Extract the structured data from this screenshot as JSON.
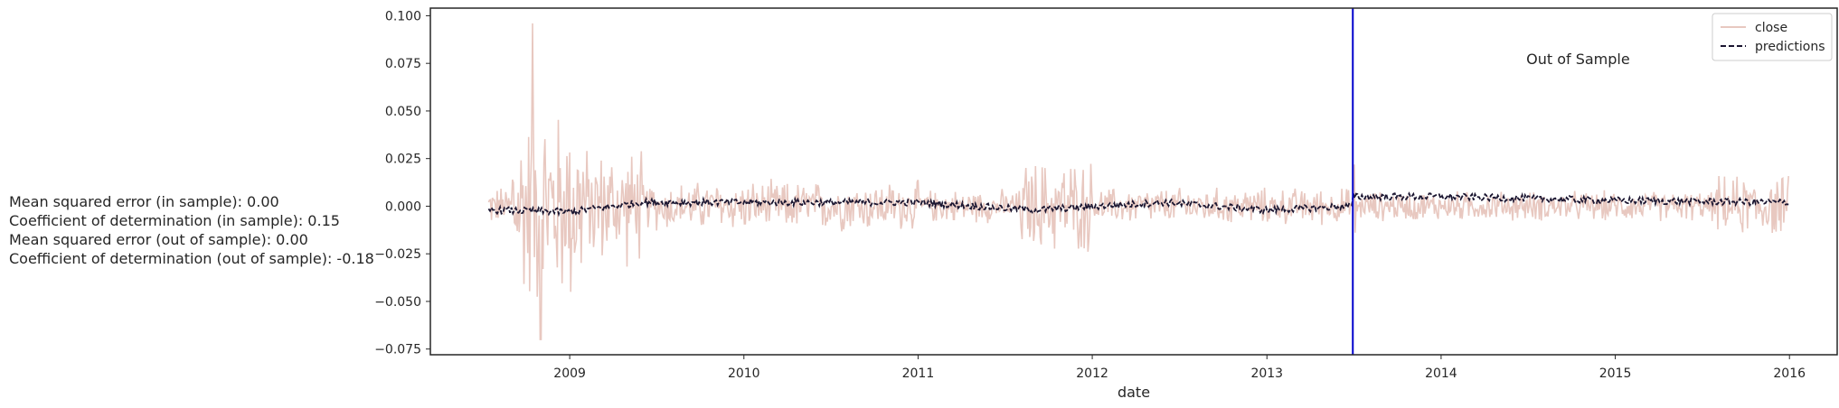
{
  "stats": [
    "Mean squared error (in sample): 0.00",
    "Coefficient of determination (in sample): 0.15",
    "Mean squared error (out of sample): 0.00",
    "Coefficient of determination (out of sample): -0.18"
  ],
  "chart_data": {
    "type": "line",
    "title": "",
    "xlabel": "date",
    "ylabel": "",
    "xlim": [
      "2008-03-15",
      "2016-04-10"
    ],
    "ylim": [
      -0.078,
      0.104
    ],
    "x_ticks": [
      "2009",
      "2010",
      "2011",
      "2012",
      "2013",
      "2014",
      "2015",
      "2016"
    ],
    "y_ticks": [
      "0.100",
      "0.075",
      "0.050",
      "0.025",
      "0.000",
      "−0.025",
      "−0.050",
      "−0.075"
    ],
    "x_range": [
      "2008-07-15",
      "2015-12-31"
    ],
    "grid": false,
    "legend": "top-right",
    "annotation": {
      "text": "Out of Sample",
      "x": "2014-10-15",
      "y": 0.077
    },
    "vline": {
      "x": "2013-06-30",
      "color": "#0000cc"
    },
    "series": [
      {
        "name": "close",
        "style": "solid",
        "color": "#e8c8c0",
        "volatility_profile": [
          {
            "from": "2008-07-15",
            "to": "2008-08-31",
            "amplitude": 0.012
          },
          {
            "from": "2008-09-01",
            "to": "2009-01-31",
            "amplitude": 0.06
          },
          {
            "from": "2009-02-01",
            "to": "2009-05-31",
            "amplitude": 0.035
          },
          {
            "from": "2009-06-01",
            "to": "2010-12-31",
            "amplitude": 0.015
          },
          {
            "from": "2011-01-01",
            "to": "2011-07-31",
            "amplitude": 0.01
          },
          {
            "from": "2011-08-01",
            "to": "2011-12-31",
            "amplitude": 0.028
          },
          {
            "from": "2012-01-01",
            "to": "2013-06-29",
            "amplitude": 0.011
          },
          {
            "from": "2013-06-30",
            "to": "2013-07-05",
            "amplitude": 0.03
          },
          {
            "from": "2013-07-06",
            "to": "2015-07-31",
            "amplitude": 0.009
          },
          {
            "from": "2015-08-01",
            "to": "2015-12-31",
            "amplitude": 0.018
          }
        ],
        "peak": {
          "x": "2008-10-15",
          "y": 0.096
        },
        "trough": {
          "x": "2008-11-01",
          "y": -0.07
        }
      },
      {
        "name": "predictions",
        "style": "dashed",
        "color": "#1a1530",
        "level_profile": [
          {
            "x": "2008-07-15",
            "y": -0.002
          },
          {
            "x": "2009-01-01",
            "y": -0.003
          },
          {
            "x": "2009-06-01",
            "y": 0.002
          },
          {
            "x": "2010-01-01",
            "y": 0.002
          },
          {
            "x": "2011-01-01",
            "y": 0.002
          },
          {
            "x": "2011-09-01",
            "y": -0.002
          },
          {
            "x": "2012-06-01",
            "y": 0.002
          },
          {
            "x": "2013-01-01",
            "y": -0.002
          },
          {
            "x": "2013-06-29",
            "y": 0.0
          },
          {
            "x": "2013-07-01",
            "y": 0.005
          },
          {
            "x": "2014-01-01",
            "y": 0.005
          },
          {
            "x": "2015-01-01",
            "y": 0.003
          },
          {
            "x": "2015-12-31",
            "y": 0.002
          }
        ]
      }
    ]
  }
}
